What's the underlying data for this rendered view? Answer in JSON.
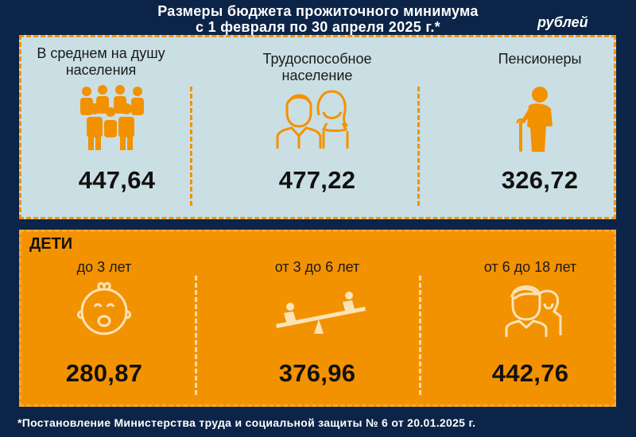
{
  "header": {
    "title_line1": "Размеры бюджета прожиточного минимума",
    "title_line2": "с 1 февраля по 30 апреля 2025 г.*",
    "unit": "рублей"
  },
  "top_panel": {
    "items": [
      {
        "label_line1": "В среднем на душу",
        "label_line2": "населения",
        "value": "447,64",
        "icon": "group-people-icon"
      },
      {
        "label_line1": "Трудоспособное",
        "label_line2": "население",
        "value": "477,22",
        "icon": "adults-pair-icon"
      },
      {
        "label_line1": "Пенсионеры",
        "label_line2": "",
        "value": "326,72",
        "icon": "elderly-person-icon"
      }
    ]
  },
  "bottom_panel": {
    "title": "ДЕТИ",
    "items": [
      {
        "label": "до 3 лет",
        "value": "280,87",
        "icon": "baby-face-icon"
      },
      {
        "label": "от 3 до 6 лет",
        "value": "376,96",
        "icon": "seesaw-icon"
      },
      {
        "label": "от 6 до 18 лет",
        "value": "442,76",
        "icon": "teens-icon"
      }
    ]
  },
  "colors": {
    "background": "#0c2447",
    "accent": "#f39200",
    "panel_light": "#c9dfe3"
  },
  "footnote": "*Постановление Министерства труда и социальной защиты № 6 от 20.01.2025 г."
}
